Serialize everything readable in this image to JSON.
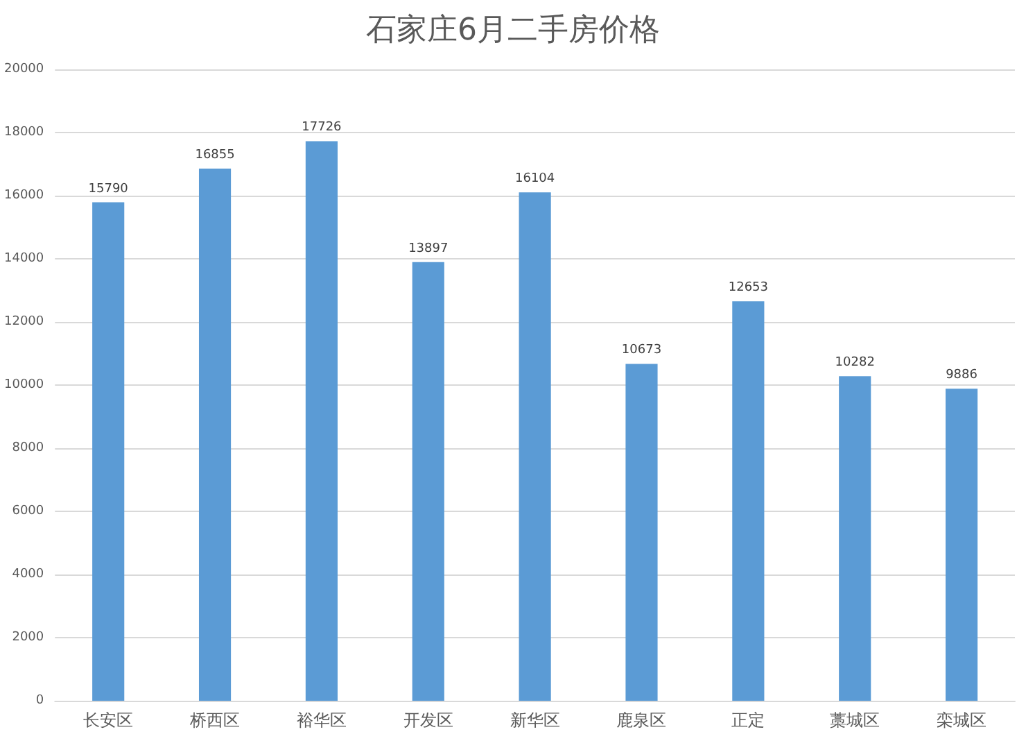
{
  "chart_data": {
    "type": "bar",
    "title": "石家庄6月二手房价格",
    "categories": [
      "长安区",
      "桥西区",
      "裕华区",
      "开发区",
      "新华区",
      "鹿泉区",
      "正定",
      "藁城区",
      "栾城区"
    ],
    "values": [
      15790,
      16855,
      17726,
      13897,
      16104,
      10673,
      12653,
      10282,
      9886
    ],
    "color": "#5b9bd5",
    "ylim": [
      0,
      20000
    ],
    "yticks": [
      0,
      2000,
      4000,
      6000,
      8000,
      10000,
      12000,
      14000,
      16000,
      18000,
      20000
    ],
    "grid": "y",
    "data_labels": true
  }
}
